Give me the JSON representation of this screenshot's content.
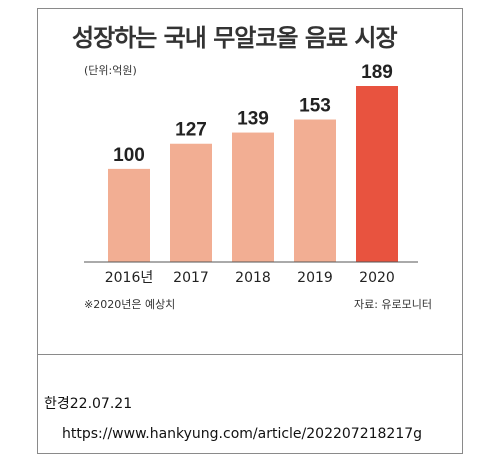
{
  "chart_data": {
    "type": "bar",
    "title": "성장하는 국내 무알코올 음료 시장",
    "unit_label": "(단위:억원)",
    "categories": [
      "2016년",
      "2017",
      "2018",
      "2019",
      "2020"
    ],
    "values": [
      100,
      127,
      139,
      153,
      189
    ],
    "value_labels": [
      "100",
      "127",
      "139",
      "153",
      "189"
    ],
    "ylim": [
      0,
      189
    ],
    "grid": false,
    "legend": "none",
    "bar_color": "#f2ae93",
    "highlight_color": "#e8533f",
    "highlight_index": 4,
    "footnote": "※2020년은 예상치",
    "source": "자료: 유로모니터"
  },
  "caption": {
    "date": "한경22.07.21",
    "url": "https://www.hankyung.com/article/202207218217g"
  }
}
